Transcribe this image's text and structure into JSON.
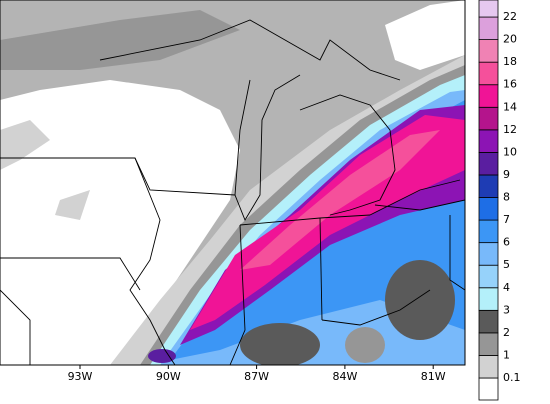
{
  "map": {
    "x_labels": [
      "93W",
      "90W",
      "87W",
      "84W",
      "81W"
    ],
    "colorbar": {
      "labels": [
        "0.1",
        "1",
        "2",
        "3",
        "4",
        "5",
        "6",
        "7",
        "8",
        "9",
        "10",
        "12",
        "14",
        "16",
        "18",
        "20",
        "22"
      ],
      "colors": [
        "#ffffff",
        "#d2d2d2",
        "#969696",
        "#5a5a5a",
        "#b4f0fa",
        "#96d2fa",
        "#78b9fa",
        "#3c96f5",
        "#1e6ee6",
        "#1e3cb4",
        "#5a1ea0",
        "#8c14b4",
        "#b4148c",
        "#f01496",
        "#f5509b",
        "#f082b4",
        "#dca0dc",
        "#e6c8f0"
      ]
    }
  }
}
